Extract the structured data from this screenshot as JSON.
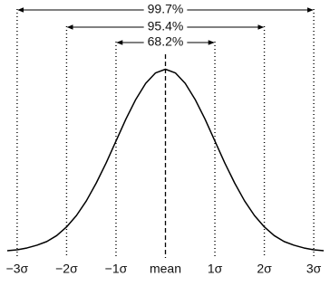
{
  "chart_data": {
    "type": "line",
    "x": [
      -3.2,
      -3.0,
      -2.8,
      -2.6,
      -2.4,
      -2.2,
      -2.0,
      -1.8,
      -1.6,
      -1.4,
      -1.2,
      -1.0,
      -0.8,
      -0.6,
      -0.4,
      -0.2,
      0,
      0.2,
      0.4,
      0.6,
      0.8,
      1.0,
      1.2,
      1.4,
      1.6,
      1.8,
      2.0,
      2.2,
      2.4,
      2.6,
      2.8,
      3.0,
      3.2
    ],
    "values": [
      0.002,
      0.004,
      0.008,
      0.014,
      0.022,
      0.035,
      0.054,
      0.079,
      0.111,
      0.15,
      0.194,
      0.242,
      0.29,
      0.333,
      0.368,
      0.391,
      0.399,
      0.391,
      0.368,
      0.333,
      0.29,
      0.242,
      0.194,
      0.15,
      0.111,
      0.079,
      0.054,
      0.035,
      0.022,
      0.014,
      0.008,
      0.004,
      0.002
    ],
    "color": "#000000",
    "xlim": [
      -3.2,
      3.2
    ],
    "ylim": [
      0,
      0.4
    ],
    "xticks": [
      {
        "value": -3,
        "label": "−3σ"
      },
      {
        "value": -2,
        "label": "−2σ"
      },
      {
        "value": -1,
        "label": "−1σ"
      },
      {
        "value": 0,
        "label": "mean"
      },
      {
        "value": 1,
        "label": "1σ"
      },
      {
        "value": 2,
        "label": "2σ"
      },
      {
        "value": 3,
        "label": "3σ"
      }
    ],
    "annotations": [
      {
        "label": "99.7%",
        "x": [
          -3,
          3
        ]
      },
      {
        "label": "95.4%",
        "x": [
          -2,
          2
        ]
      },
      {
        "label": "68.2%",
        "x": [
          -1,
          1
        ]
      }
    ]
  }
}
